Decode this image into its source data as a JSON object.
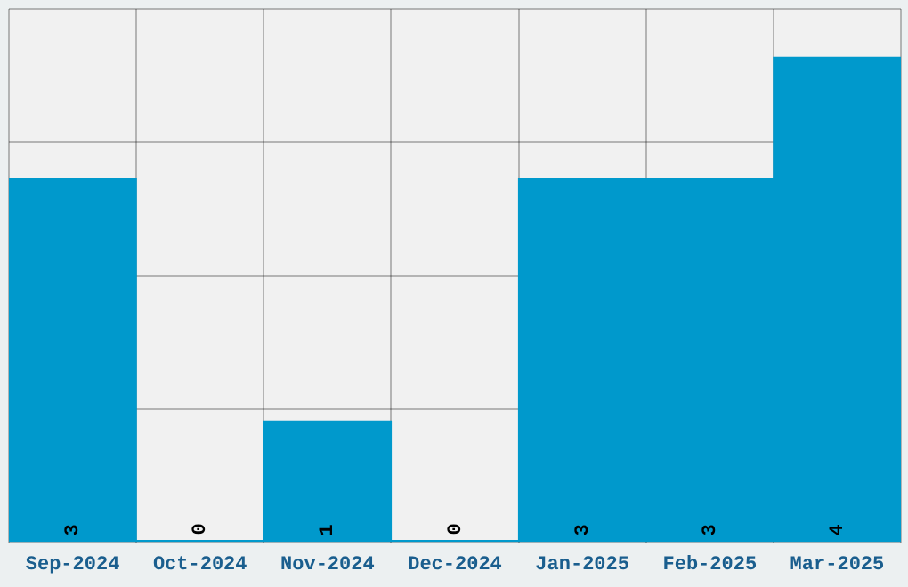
{
  "chart_data": {
    "type": "bar",
    "categories": [
      "Sep-2024",
      "Oct-2024",
      "Nov-2024",
      "Dec-2024",
      "Jan-2025",
      "Feb-2025",
      "Mar-2025"
    ],
    "values": [
      3,
      0,
      1,
      0,
      3,
      3,
      4
    ],
    "color": "#0099cc",
    "ylim": [
      0,
      4.4
    ],
    "tick_labels": "x",
    "grid": true,
    "data_labels": true
  }
}
